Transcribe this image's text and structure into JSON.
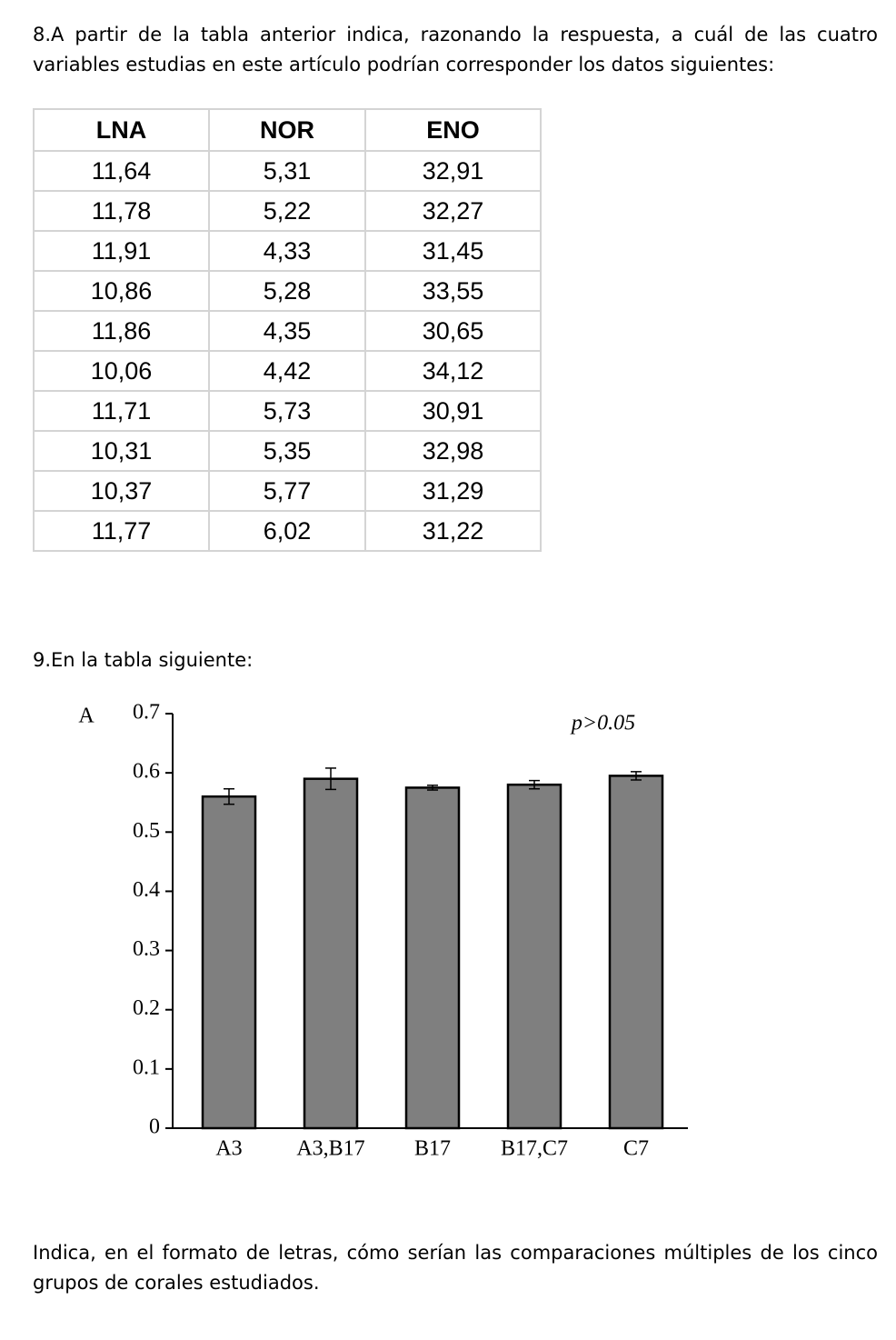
{
  "q8": {
    "text": "8.A partir de la tabla anterior indica, razonando la respuesta, a cuál de las cuatro variables estudias en este artículo podrían corresponder los datos siguientes:"
  },
  "table": {
    "headers": [
      "LNA",
      "NOR",
      "ENO"
    ],
    "rows": [
      [
        "11,64",
        "5,31",
        "32,91"
      ],
      [
        "11,78",
        "5,22",
        "32,27"
      ],
      [
        "11,91",
        "4,33",
        "31,45"
      ],
      [
        "10,86",
        "5,28",
        "33,55"
      ],
      [
        "11,86",
        "4,35",
        "30,65"
      ],
      [
        "10,06",
        "4,42",
        "34,12"
      ],
      [
        "11,71",
        "5,73",
        "30,91"
      ],
      [
        "10,31",
        "5,35",
        "32,98"
      ],
      [
        "10,37",
        "5,77",
        "31,29"
      ],
      [
        "11,77",
        "6,02",
        "31,22"
      ]
    ]
  },
  "q9": {
    "text": "9.En la tabla siguiente:"
  },
  "chart_data": {
    "type": "bar",
    "panel_label": "A",
    "annotation": "p>0.05",
    "categories": [
      "A3",
      "A3,B17",
      "B17",
      "B17,C7",
      "C7"
    ],
    "values": [
      0.56,
      0.59,
      0.575,
      0.58,
      0.595
    ],
    "errors": [
      0.013,
      0.018,
      0.004,
      0.007,
      0.007
    ],
    "color": "#7f7f7f",
    "ylim": [
      0,
      0.7
    ],
    "yticks": [
      0,
      0.1,
      0.2,
      0.3,
      0.4,
      0.5,
      0.6,
      0.7
    ]
  },
  "q10": {
    "text": "Indica, en el formato de letras, cómo serían las comparaciones múltiples de los cinco grupos de corales estudiados."
  }
}
